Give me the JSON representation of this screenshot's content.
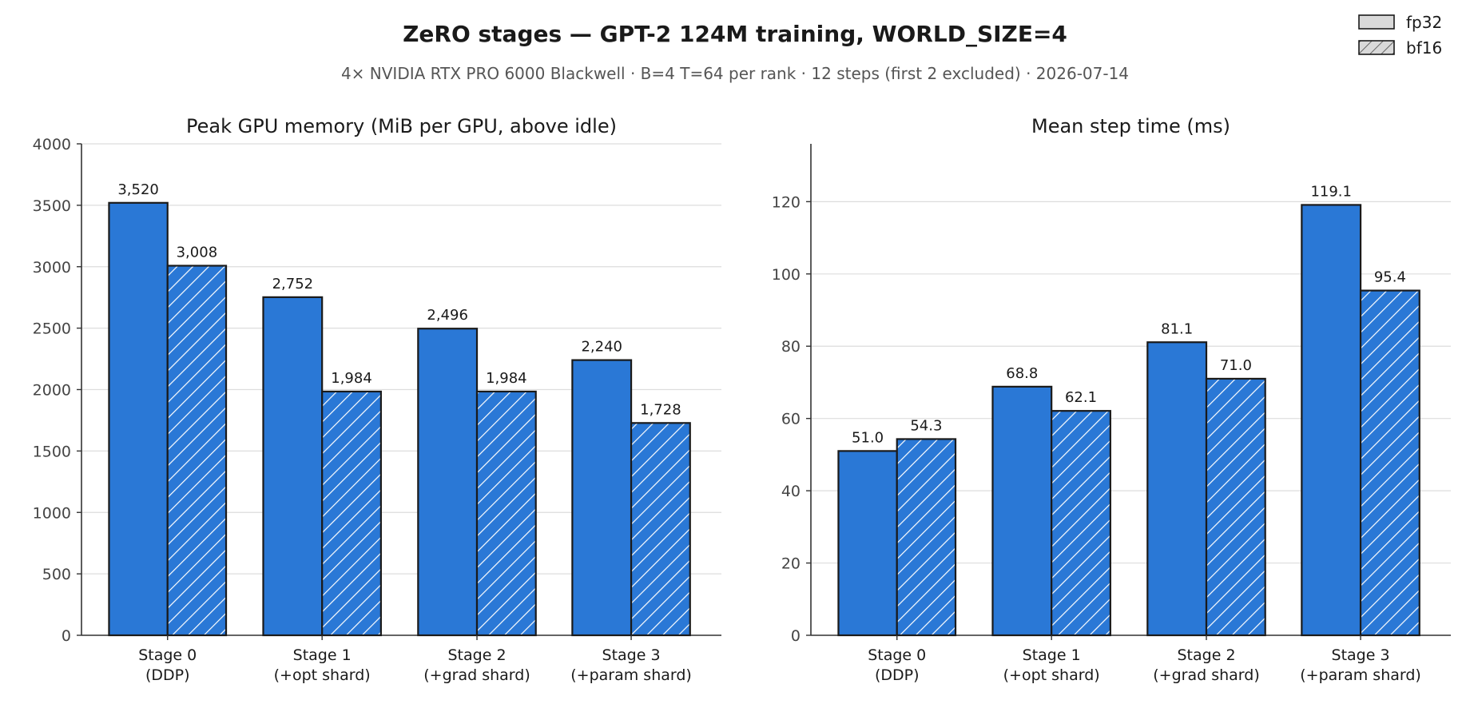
{
  "title": "ZeRO stages — GPT-2 124M training, WORLD_SIZE=4",
  "subtitle": "4× NVIDIA RTX PRO 6000 Blackwell · B=4 T=64 per rank · 12 steps (first 2 excluded) · 2026-07-14",
  "legend": {
    "placement": "top-right",
    "items": [
      "fp32",
      "bf16"
    ]
  },
  "colors": {
    "bar": "#2a78d6",
    "edge": "#1a1a1a",
    "grid": "#dddddd",
    "axis": "#333333",
    "legend_fill": "#d9d9d9"
  },
  "chart_data": [
    {
      "type": "bar",
      "title": "Peak GPU memory (MiB per GPU, above idle)",
      "xlabel": "",
      "ylabel": "",
      "categories": [
        [
          "Stage 0",
          "(DDP)"
        ],
        [
          "Stage 1",
          "(+opt shard)"
        ],
        [
          "Stage 2",
          "(+grad shard)"
        ],
        [
          "Stage 3",
          "(+param shard)"
        ]
      ],
      "series": [
        {
          "name": "fp32",
          "values": [
            3520,
            2752,
            2496,
            2240
          ],
          "labels": [
            "3,520",
            "2,752",
            "2,496",
            "2,240"
          ],
          "hatch": false
        },
        {
          "name": "bf16",
          "values": [
            3008,
            1984,
            1984,
            1728
          ],
          "labels": [
            "3,008",
            "1,984",
            "1,984",
            "1,728"
          ],
          "hatch": true
        }
      ],
      "ylim": [
        0,
        4000
      ],
      "yticks": [
        0,
        500,
        1000,
        1500,
        2000,
        2500,
        3000,
        3500,
        4000
      ],
      "grid": true
    },
    {
      "type": "bar",
      "title": "Mean step time (ms)",
      "xlabel": "",
      "ylabel": "",
      "categories": [
        [
          "Stage 0",
          "(DDP)"
        ],
        [
          "Stage 1",
          "(+opt shard)"
        ],
        [
          "Stage 2",
          "(+grad shard)"
        ],
        [
          "Stage 3",
          "(+param shard)"
        ]
      ],
      "series": [
        {
          "name": "fp32",
          "values": [
            51.0,
            68.8,
            81.1,
            119.1
          ],
          "labels": [
            "51.0",
            "68.8",
            "81.1",
            "119.1"
          ],
          "hatch": false
        },
        {
          "name": "bf16",
          "values": [
            54.3,
            62.1,
            71.0,
            95.4
          ],
          "labels": [
            "54.3",
            "62.1",
            "71.0",
            "95.4"
          ],
          "hatch": true
        }
      ],
      "ylim": [
        0,
        136
      ],
      "yticks": [
        0,
        20,
        40,
        60,
        80,
        100,
        120
      ],
      "grid": true
    }
  ]
}
